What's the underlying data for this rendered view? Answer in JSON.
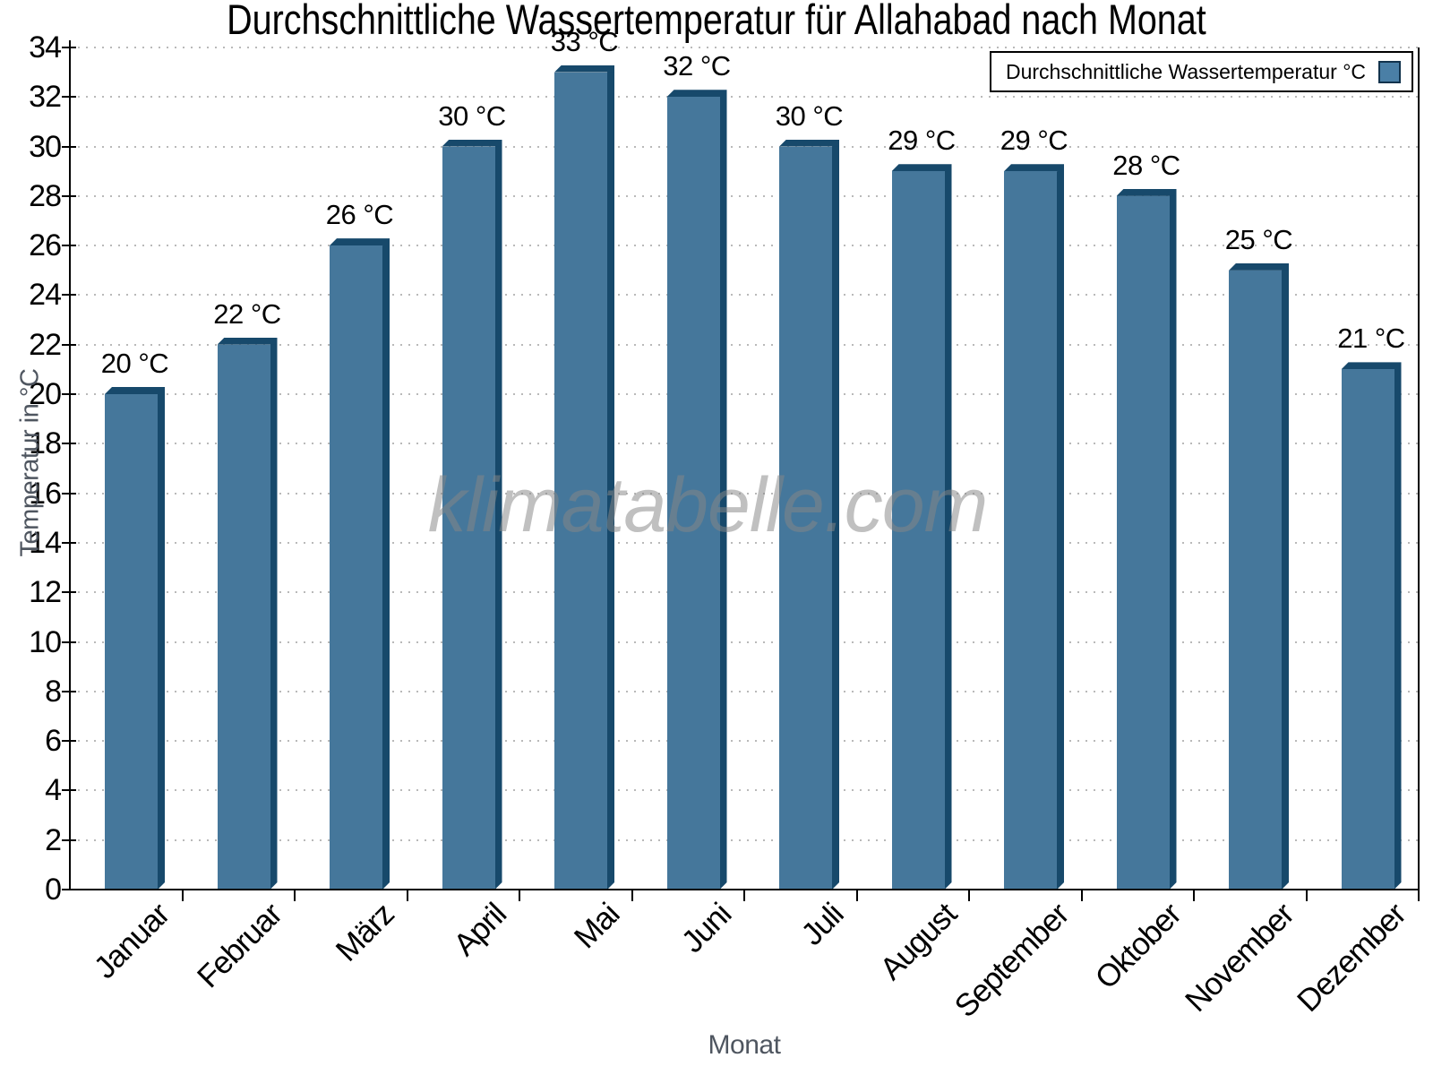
{
  "chart_data": {
    "type": "bar",
    "title": "Durchschnittliche Wassertemperatur für Allahabad nach Monat",
    "categories": [
      "Januar",
      "Februar",
      "März",
      "April",
      "Mai",
      "Juni",
      "Juli",
      "August",
      "September",
      "Oktober",
      "November",
      "Dezember"
    ],
    "values": [
      20,
      22,
      26,
      30,
      33,
      32,
      30,
      29,
      29,
      28,
      25,
      21
    ],
    "value_suffix": " °C",
    "xlabel": "Monat",
    "ylabel": "Temperatur in °C",
    "ylim": [
      0,
      34
    ],
    "ytick_step": 2,
    "grid": "horizontal-dotted",
    "legend": {
      "label": "Durchschnittliche Wassertemperatur °C",
      "position": "top-right"
    },
    "watermark": "klimatabelle.com",
    "colors": {
      "bar_face": "#45779B",
      "bar_edge": "#17496B",
      "legend_swatch": "#4A7FA6",
      "axis": "#000000",
      "grid": "#B9B9B9",
      "axis_title_text": "#4F5660",
      "background": "#FFFFFF"
    }
  }
}
